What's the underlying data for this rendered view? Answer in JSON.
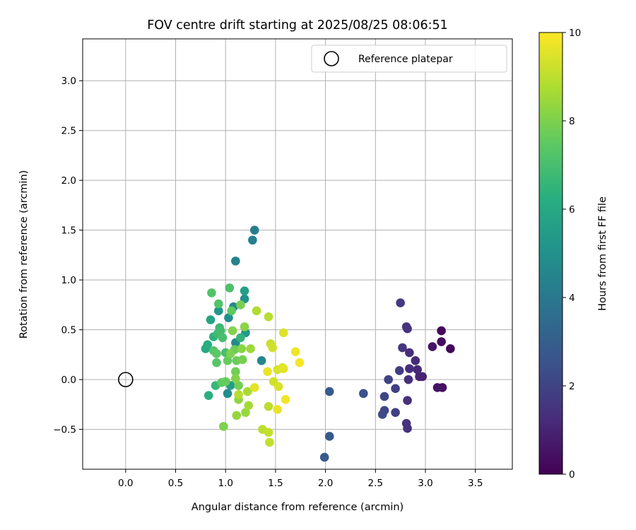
{
  "chart_data": {
    "type": "scatter",
    "title": "FOV centre drift starting at 2025/08/25 08:06:51",
    "xlabel": "Angular distance from reference (arcmin)",
    "ylabel": "Rotation from reference (arcmin)",
    "xlim": [
      -0.43,
      3.87
    ],
    "ylim": [
      -0.9,
      3.42
    ],
    "xticks": [
      0.0,
      0.5,
      1.0,
      1.5,
      2.0,
      2.5,
      3.0,
      3.5
    ],
    "yticks": [
      -0.5,
      0.0,
      0.5,
      1.0,
      1.5,
      2.0,
      2.5,
      3.0
    ],
    "xtick_labels": [
      "0.0",
      "0.5",
      "1.0",
      "1.5",
      "2.0",
      "2.5",
      "3.0",
      "3.5"
    ],
    "ytick_labels": [
      "−0.5",
      "0.0",
      "0.5",
      "1.0",
      "1.5",
      "2.0",
      "2.5",
      "3.0"
    ],
    "grid": true,
    "legend_position": "top-right",
    "legend_entries": [
      "Reference platepar"
    ],
    "reference_point": {
      "x": 0.0,
      "y": 0.0
    },
    "colorbar": {
      "label": "Hours from first FF file",
      "range": [
        0,
        10
      ],
      "ticks": [
        0,
        2,
        4,
        6,
        8,
        10
      ],
      "tick_labels": [
        "0",
        "2",
        "4",
        "6",
        "8",
        "10"
      ],
      "colormap": "viridis"
    },
    "points": [
      {
        "x": 3.25,
        "y": 0.31,
        "h": 0.1
      },
      {
        "x": 3.16,
        "y": 0.49,
        "h": 0.2
      },
      {
        "x": 3.16,
        "y": 0.38,
        "h": 0.3
      },
      {
        "x": 3.17,
        "y": -0.08,
        "h": 0.4
      },
      {
        "x": 3.12,
        "y": -0.08,
        "h": 0.5
      },
      {
        "x": 3.07,
        "y": 0.33,
        "h": 0.6
      },
      {
        "x": 2.97,
        "y": 0.03,
        "h": 0.9
      },
      {
        "x": 2.94,
        "y": 0.03,
        "h": 1.0
      },
      {
        "x": 2.92,
        "y": 0.1,
        "h": 1.1
      },
      {
        "x": 2.9,
        "y": 0.19,
        "h": 1.2
      },
      {
        "x": 2.84,
        "y": 0.27,
        "h": 1.3
      },
      {
        "x": 2.84,
        "y": 0.11,
        "h": 1.3
      },
      {
        "x": 2.83,
        "y": 0.0,
        "h": 1.4
      },
      {
        "x": 2.82,
        "y": -0.21,
        "h": 1.4
      },
      {
        "x": 2.82,
        "y": -0.49,
        "h": 1.4
      },
      {
        "x": 2.81,
        "y": -0.44,
        "h": 1.5
      },
      {
        "x": 2.82,
        "y": 0.51,
        "h": 1.5
      },
      {
        "x": 2.81,
        "y": 0.53,
        "h": 1.5
      },
      {
        "x": 2.77,
        "y": 0.32,
        "h": 1.6
      },
      {
        "x": 2.75,
        "y": 0.77,
        "h": 1.7
      },
      {
        "x": 2.74,
        "y": 0.09,
        "h": 1.8
      },
      {
        "x": 2.7,
        "y": -0.09,
        "h": 1.9
      },
      {
        "x": 2.7,
        "y": -0.33,
        "h": 1.9
      },
      {
        "x": 2.63,
        "y": 0.0,
        "h": 2.0
      },
      {
        "x": 2.59,
        "y": -0.31,
        "h": 2.1
      },
      {
        "x": 2.59,
        "y": -0.17,
        "h": 2.1
      },
      {
        "x": 2.57,
        "y": -0.35,
        "h": 2.2
      },
      {
        "x": 2.38,
        "y": -0.14,
        "h": 2.5
      },
      {
        "x": 2.04,
        "y": -0.12,
        "h": 2.8
      },
      {
        "x": 2.04,
        "y": -0.57,
        "h": 2.8
      },
      {
        "x": 1.99,
        "y": -0.78,
        "h": 2.9
      },
      {
        "x": 1.29,
        "y": 1.5,
        "h": 4.2
      },
      {
        "x": 1.27,
        "y": 1.4,
        "h": 4.3
      },
      {
        "x": 1.1,
        "y": 1.19,
        "h": 4.4
      },
      {
        "x": 1.36,
        "y": 0.19,
        "h": 4.5
      },
      {
        "x": 1.08,
        "y": 0.73,
        "h": 4.6
      },
      {
        "x": 1.1,
        "y": 0.37,
        "h": 4.7
      },
      {
        "x": 1.02,
        "y": -0.14,
        "h": 4.8
      },
      {
        "x": 1.03,
        "y": 0.62,
        "h": 4.9
      },
      {
        "x": 1.19,
        "y": 0.81,
        "h": 5.0
      },
      {
        "x": 0.93,
        "y": 0.69,
        "h": 5.2
      },
      {
        "x": 1.2,
        "y": 0.47,
        "h": 5.3
      },
      {
        "x": 1.05,
        "y": -0.06,
        "h": 5.5
      },
      {
        "x": 1.19,
        "y": 0.89,
        "h": 5.6
      },
      {
        "x": 0.85,
        "y": 0.6,
        "h": 5.8
      },
      {
        "x": 0.8,
        "y": 0.31,
        "h": 6.0
      },
      {
        "x": 0.82,
        "y": 0.35,
        "h": 6.2
      },
      {
        "x": 0.83,
        "y": -0.16,
        "h": 6.3
      },
      {
        "x": 0.88,
        "y": 0.43,
        "h": 6.4
      },
      {
        "x": 1.15,
        "y": 0.42,
        "h": 6.5
      },
      {
        "x": 0.9,
        "y": -0.06,
        "h": 6.6
      },
      {
        "x": 0.94,
        "y": 0.52,
        "h": 6.7
      },
      {
        "x": 0.92,
        "y": 0.46,
        "h": 6.8
      },
      {
        "x": 0.95,
        "y": 0.49,
        "h": 6.9
      },
      {
        "x": 1.0,
        "y": 0.27,
        "h": 7.0
      },
      {
        "x": 0.97,
        "y": 0.42,
        "h": 7.0
      },
      {
        "x": 1.04,
        "y": 0.92,
        "h": 7.1
      },
      {
        "x": 0.86,
        "y": 0.87,
        "h": 7.2
      },
      {
        "x": 0.93,
        "y": 0.76,
        "h": 7.2
      },
      {
        "x": 0.91,
        "y": 0.17,
        "h": 7.3
      },
      {
        "x": 0.88,
        "y": 0.29,
        "h": 7.3
      },
      {
        "x": 0.91,
        "y": 0.26,
        "h": 7.4
      },
      {
        "x": 0.96,
        "y": -0.03,
        "h": 7.5
      },
      {
        "x": 1.06,
        "y": 0.69,
        "h": 7.5
      },
      {
        "x": 1.0,
        "y": -0.02,
        "h": 7.6
      },
      {
        "x": 1.02,
        "y": 0.19,
        "h": 7.6
      },
      {
        "x": 1.09,
        "y": 0.3,
        "h": 7.7
      },
      {
        "x": 1.11,
        "y": 0.19,
        "h": 7.7
      },
      {
        "x": 1.13,
        "y": -0.06,
        "h": 7.8
      },
      {
        "x": 1.1,
        "y": 0.08,
        "h": 7.8
      },
      {
        "x": 1.15,
        "y": 0.75,
        "h": 7.9
      },
      {
        "x": 1.17,
        "y": 0.2,
        "h": 7.9
      },
      {
        "x": 0.98,
        "y": -0.47,
        "h": 8.0
      },
      {
        "x": 1.05,
        "y": 0.26,
        "h": 8.0
      },
      {
        "x": 1.07,
        "y": 0.49,
        "h": 8.1
      },
      {
        "x": 1.1,
        "y": 0.01,
        "h": 8.1
      },
      {
        "x": 1.19,
        "y": 0.53,
        "h": 8.2
      },
      {
        "x": 1.16,
        "y": 0.31,
        "h": 8.2
      },
      {
        "x": 1.13,
        "y": -0.2,
        "h": 8.3
      },
      {
        "x": 1.2,
        "y": -0.33,
        "h": 8.4
      },
      {
        "x": 1.11,
        "y": -0.36,
        "h": 8.4
      },
      {
        "x": 1.25,
        "y": 0.31,
        "h": 8.5
      },
      {
        "x": 1.23,
        "y": -0.26,
        "h": 8.6
      },
      {
        "x": 1.22,
        "y": -0.12,
        "h": 8.7
      },
      {
        "x": 1.31,
        "y": 0.69,
        "h": 8.8
      },
      {
        "x": 1.43,
        "y": 0.63,
        "h": 8.9
      },
      {
        "x": 1.13,
        "y": -0.15,
        "h": 8.9
      },
      {
        "x": 1.43,
        "y": -0.27,
        "h": 9.0
      },
      {
        "x": 1.37,
        "y": -0.5,
        "h": 9.0
      },
      {
        "x": 1.43,
        "y": -0.53,
        "h": 9.1
      },
      {
        "x": 1.44,
        "y": -0.63,
        "h": 9.1
      },
      {
        "x": 1.45,
        "y": 0.36,
        "h": 9.2
      },
      {
        "x": 1.47,
        "y": 0.32,
        "h": 9.3
      },
      {
        "x": 1.48,
        "y": -0.02,
        "h": 9.3
      },
      {
        "x": 1.53,
        "y": -0.07,
        "h": 9.4
      },
      {
        "x": 1.52,
        "y": 0.1,
        "h": 9.4
      },
      {
        "x": 1.58,
        "y": 0.47,
        "h": 9.5
      },
      {
        "x": 1.57,
        "y": 0.12,
        "h": 9.5
      },
      {
        "x": 1.58,
        "y": 0.11,
        "h": 9.6
      },
      {
        "x": 1.29,
        "y": -0.08,
        "h": 9.6
      },
      {
        "x": 1.42,
        "y": 0.08,
        "h": 9.7
      },
      {
        "x": 1.52,
        "y": -0.3,
        "h": 9.7
      },
      {
        "x": 1.6,
        "y": -0.2,
        "h": 9.8
      },
      {
        "x": 1.7,
        "y": 0.28,
        "h": 9.8
      },
      {
        "x": 1.74,
        "y": 0.17,
        "h": 9.9
      }
    ]
  }
}
